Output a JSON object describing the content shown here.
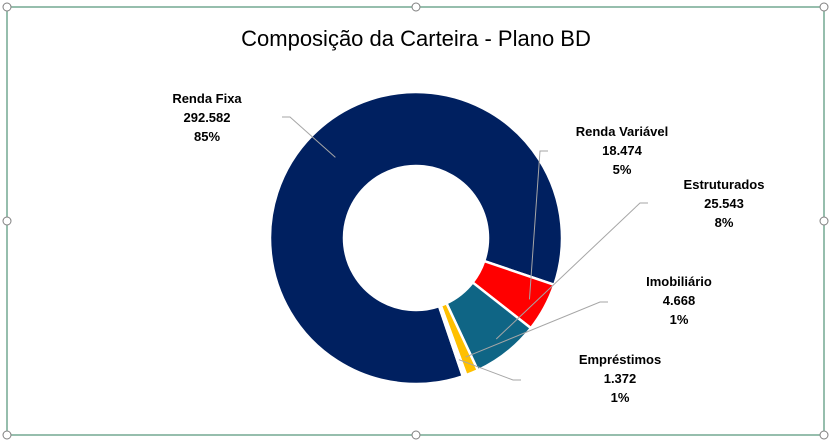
{
  "chart_data": {
    "type": "pie",
    "variant": "doughnut",
    "title": "Composição da Carteira - Plano BD",
    "legend": "none",
    "slices": [
      {
        "name": "Renda Fixa",
        "value": 292582,
        "value_label": "292.582",
        "pct_label": "85%",
        "color": "#002060"
      },
      {
        "name": "Renda Variável",
        "value": 18474,
        "value_label": "18.474",
        "pct_label": "5%",
        "color": "#FF0000"
      },
      {
        "name": "Estruturados",
        "value": 25543,
        "value_label": "25.543",
        "pct_label": "8%",
        "color": "#0F6585"
      },
      {
        "name": "Imobiliário",
        "value": 4668,
        "value_label": "4.668",
        "pct_label": "1%",
        "color": "#FFC000"
      },
      {
        "name": "Empréstimos",
        "value": 1372,
        "value_label": "1.372",
        "pct_label": "1%",
        "color": "#FFFFFF"
      }
    ]
  }
}
